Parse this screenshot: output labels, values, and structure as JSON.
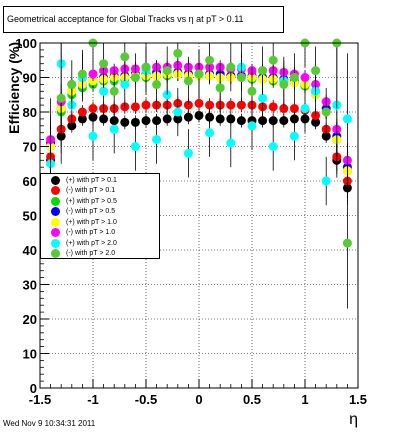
{
  "title": "Geometrical acceptance for Global Tracks vs    η at pT > 0.11",
  "timestamp": "Wed Nov  9 10:34:31 2011",
  "chart_data": {
    "type": "scatter",
    "xlabel": "η",
    "ylabel": "Efficiency (%)",
    "xlim": [
      -1.5,
      1.5
    ],
    "ylim": [
      0,
      100
    ],
    "xticks": [
      -1.5,
      -1,
      -0.5,
      0,
      0.5,
      1,
      1.5
    ],
    "xtick_labels": [
      "-1.5",
      "-1",
      "-0.5",
      "0",
      "0.5",
      "1",
      "1.5"
    ],
    "yticks": [
      0,
      10,
      20,
      30,
      40,
      50,
      60,
      70,
      80,
      90,
      100
    ],
    "ytick_labels": [
      "0",
      "10",
      "20",
      "30",
      "40",
      "50",
      "60",
      "70",
      "80",
      "90",
      "100"
    ],
    "grid": true,
    "legend_position": "lower-left",
    "x": [
      -1.4,
      -1.3,
      -1.2,
      -1.1,
      -1.0,
      -0.9,
      -0.8,
      -0.7,
      -0.6,
      -0.5,
      -0.4,
      -0.3,
      -0.2,
      -0.1,
      0.0,
      0.1,
      0.2,
      0.3,
      0.4,
      0.5,
      0.6,
      0.7,
      0.8,
      0.9,
      1.0,
      1.1,
      1.2,
      1.3,
      1.4
    ],
    "series": [
      {
        "name": "(+) with pT > 0.1",
        "color": "#000000",
        "values": [
          66,
          73,
          76,
          78,
          78.5,
          78,
          77.5,
          77,
          77,
          77.5,
          77.5,
          78,
          78,
          78.5,
          79,
          78.5,
          78,
          78,
          77.5,
          77.5,
          77.5,
          77.5,
          77.5,
          78,
          78,
          77,
          73,
          66,
          58
        ]
      },
      {
        "name": "(-) with pT > 0.1",
        "color": "#ff0000",
        "values": [
          67,
          75,
          78,
          80,
          81,
          81,
          81,
          81.5,
          81.5,
          82,
          82,
          82,
          82.5,
          82,
          82.5,
          82,
          82,
          82,
          82,
          82,
          81.5,
          81.5,
          81,
          81,
          80.5,
          79,
          75,
          67,
          60
        ]
      },
      {
        "name": "(+) with pT > 0.5",
        "color": "#00dd00",
        "values": [
          70,
          80,
          85,
          87,
          88,
          89,
          89,
          89.5,
          90,
          90,
          90.5,
          90.5,
          91,
          91,
          90.5,
          90.5,
          90,
          90.5,
          90,
          89.5,
          89.5,
          89,
          89,
          88.5,
          87.5,
          85,
          80,
          72,
          63
        ]
      },
      {
        "name": "(-) with pT > 0.5",
        "color": "#0000ff",
        "values": [
          71,
          81,
          86,
          88,
          89,
          90,
          90.5,
          90.5,
          91,
          91,
          91.5,
          91.5,
          91.5,
          91,
          91,
          91,
          91,
          90.5,
          90.5,
          90.5,
          90,
          90,
          89.5,
          89,
          88,
          86,
          81,
          73,
          64
        ]
      },
      {
        "name": "(+) with pT > 1.0",
        "color": "#ffff00",
        "values": [
          70,
          81,
          86,
          88,
          89,
          89.5,
          90,
          90,
          90.5,
          90.5,
          90.5,
          91,
          91,
          90.5,
          90.5,
          90.5,
          90,
          90,
          90,
          90,
          89.5,
          89.5,
          89,
          88.5,
          88,
          85,
          80,
          72,
          63
        ]
      },
      {
        "name": "(-) with pT > 1.0",
        "color": "#ff00ff",
        "values": [
          72,
          83,
          88,
          90,
          91,
          92,
          92,
          92.5,
          92.5,
          93,
          93,
          93,
          93.5,
          93,
          93,
          93,
          93,
          92.5,
          92.5,
          92,
          92,
          92,
          91.5,
          91,
          90,
          88,
          83,
          75,
          66
        ]
      },
      {
        "name": "(+) with pT > 2.0",
        "color": "#00ffff",
        "values": [
          65,
          94,
          82,
          90,
          73,
          86,
          75,
          88,
          70,
          92,
          72,
          85,
          80,
          68,
          91,
          74,
          87,
          71,
          93,
          76,
          84,
          70,
          89,
          73,
          81,
          86,
          60,
          82,
          78
        ]
      },
      {
        "name": "(-) with pT > 2.0",
        "color": "#55cc33",
        "values": [
          60,
          84,
          88,
          91,
          100,
          94,
          86,
          96,
          90,
          93,
          88,
          92,
          97,
          89,
          91,
          95,
          87,
          93,
          90,
          86,
          92,
          95,
          88,
          90,
          100,
          92,
          80,
          100,
          42
        ]
      }
    ]
  }
}
